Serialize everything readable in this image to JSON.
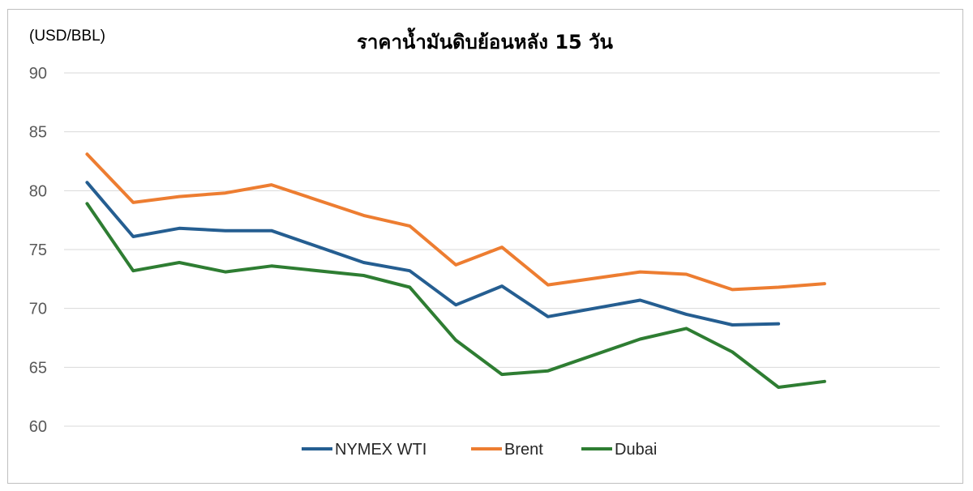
{
  "chart_data": {
    "type": "line",
    "title": "ราคาน้ำมันดิบย้อนหลัง 15 วัน",
    "ylabel": "(USD/BBL)",
    "xlabel": "",
    "ylim": [
      60,
      90
    ],
    "yticks": [
      60,
      65,
      70,
      75,
      80,
      85,
      90
    ],
    "grid": true,
    "legend_position": "bottom",
    "x": [
      1,
      2,
      3,
      4,
      5,
      6,
      7,
      8,
      9,
      10,
      11,
      12,
      13,
      14,
      15,
      16,
      17,
      18,
      19
    ],
    "series": [
      {
        "name": "NYMEX WTI",
        "color": "#255e91",
        "values": [
          80.7,
          76.1,
          76.8,
          76.6,
          76.6,
          null,
          73.9,
          73.2,
          70.3,
          71.9,
          69.3,
          null,
          70.7,
          69.5,
          68.6,
          68.7,
          null,
          null,
          null
        ]
      },
      {
        "name": "Brent",
        "color": "#ed7d31",
        "values": [
          83.1,
          79.0,
          79.5,
          79.8,
          80.5,
          null,
          77.9,
          77.0,
          73.7,
          75.2,
          72.0,
          null,
          73.1,
          72.9,
          71.6,
          71.8,
          72.1,
          null,
          null
        ]
      },
      {
        "name": "Dubai",
        "color": "#2e7d32",
        "values": [
          78.9,
          73.2,
          73.9,
          73.1,
          73.6,
          null,
          72.8,
          71.8,
          67.3,
          64.4,
          64.7,
          null,
          67.4,
          68.3,
          66.3,
          63.3,
          63.8,
          null,
          null
        ]
      }
    ]
  }
}
